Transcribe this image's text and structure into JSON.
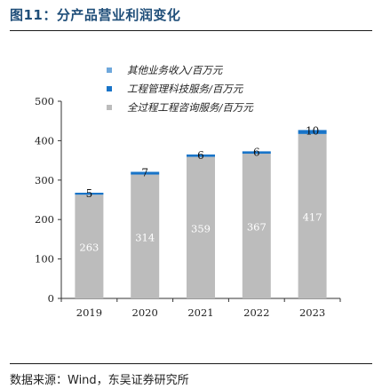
{
  "title": "图11：分产品营业利润变化",
  "source": "数据来源：Wind，东吴证券研究所",
  "chart_data": {
    "type": "bar",
    "stacked": true,
    "categories": [
      "2019",
      "2020",
      "2021",
      "2022",
      "2023"
    ],
    "series": [
      {
        "name": "全过程工程咨询服务/百万元",
        "color": "#bcbcbc",
        "values": [
          263,
          314,
          359,
          367,
          417
        ]
      },
      {
        "name": "工程管理科技服务/百万元",
        "color": "#1874c8",
        "values": [
          5,
          7,
          6,
          6,
          10
        ]
      },
      {
        "name": "其他业务收入/百万元",
        "color": "#6fa8dc",
        "values": [
          0,
          0,
          0,
          0,
          0
        ]
      }
    ],
    "ylim": [
      0,
      500
    ],
    "yticks": [
      0,
      100,
      200,
      300,
      400,
      500
    ],
    "legend_position": "top",
    "grid": false
  }
}
